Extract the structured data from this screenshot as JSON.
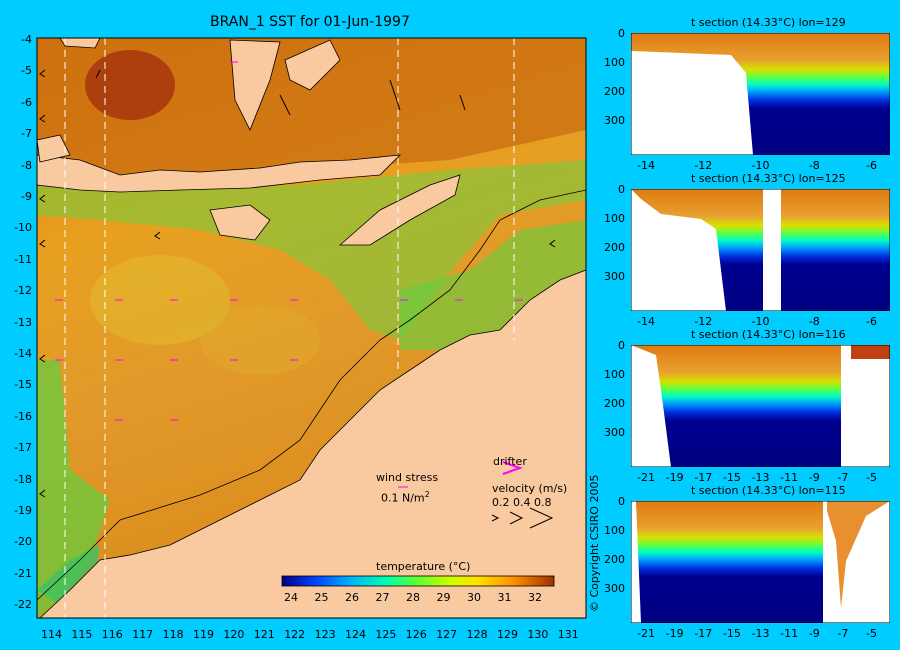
{
  "title": "BRAN_1 SST for 01-Jun-1997",
  "map": {
    "lat_ticks": [
      "-4",
      "-5",
      "-6",
      "-7",
      "-8",
      "-9",
      "-10",
      "-11",
      "-12",
      "-13",
      "-14",
      "-15",
      "-16",
      "-17",
      "-18",
      "-19",
      "-20",
      "-21",
      "-22"
    ],
    "lon_ticks": [
      "114",
      "115",
      "116",
      "117",
      "118",
      "119",
      "120",
      "121",
      "122",
      "123",
      "124",
      "125",
      "126",
      "127",
      "128",
      "129",
      "130",
      "131"
    ],
    "legend": {
      "wind_stress_label": "wind stress",
      "wind_stress_value": "0.1 N/m",
      "wind_stress_sup": "2",
      "drifter_label": "drifter",
      "velocity_label": "velocity (m/s)",
      "velocity_values": "0.2 0.4 0.8"
    },
    "colorbar": {
      "title": "temperature (°C)",
      "ticks": [
        "24",
        "25",
        "26",
        "27",
        "28",
        "29",
        "30",
        "31",
        "32"
      ]
    },
    "colors": {
      "land": "#f9c9a0",
      "background": "#00ccff",
      "drifter": "#ff00ff"
    }
  },
  "sections": [
    {
      "title": "t section (14.33°C) lon=129",
      "x_ticks": [
        "-14",
        "-12",
        "-10",
        "-8",
        "-6"
      ],
      "y_ticks": [
        "0",
        "100",
        "200",
        "300"
      ]
    },
    {
      "title": "t section (14.33°C) lon=125",
      "x_ticks": [
        "-14",
        "-12",
        "-10",
        "-8",
        "-6"
      ],
      "y_ticks": [
        "0",
        "100",
        "200",
        "300"
      ]
    },
    {
      "title": "t section (14.33°C) lon=116",
      "x_ticks": [
        "-21",
        "-19",
        "-17",
        "-15",
        "-13",
        "-11",
        "-9",
        "-7",
        "-5"
      ],
      "y_ticks": [
        "0",
        "100",
        "200",
        "300"
      ]
    },
    {
      "title": "t section (14.33°C) lon=115",
      "x_ticks": [
        "-21",
        "-19",
        "-17",
        "-15",
        "-13",
        "-11",
        "-9",
        "-7",
        "-5"
      ],
      "y_ticks": [
        "0",
        "100",
        "200",
        "300"
      ]
    }
  ],
  "copyright": "© Copyright CSIRO 2005"
}
